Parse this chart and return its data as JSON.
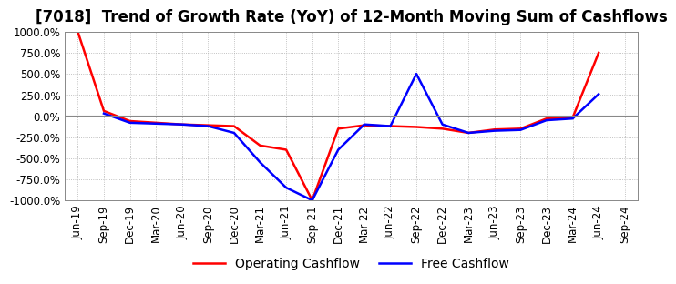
{
  "title": "[7018]  Trend of Growth Rate (YoY) of 12-Month Moving Sum of Cashflows",
  "title_fontsize": 12,
  "background_color": "#ffffff",
  "plot_background": "#ffffff",
  "grid_color": "#b0b0b0",
  "grid_style": "dotted",
  "ylim": [
    -1000,
    1000
  ],
  "yticks": [
    1000,
    750,
    500,
    250,
    0,
    -250,
    -500,
    -750,
    -1000
  ],
  "ytick_labels": [
    "1000.0%",
    "750.0%",
    "500.0%",
    "250.0%",
    "0.0%",
    "-250.0%",
    "-500.0%",
    "-750.0%",
    "-1000.0%"
  ],
  "x_labels": [
    "Jun-19",
    "Sep-19",
    "Dec-19",
    "Mar-20",
    "Jun-20",
    "Sep-20",
    "Dec-20",
    "Mar-21",
    "Jun-21",
    "Sep-21",
    "Dec-21",
    "Mar-22",
    "Jun-22",
    "Sep-22",
    "Dec-22",
    "Mar-23",
    "Jun-23",
    "Sep-23",
    "Dec-23",
    "Mar-24",
    "Jun-24",
    "Sep-24"
  ],
  "operating_cashflow": [
    1000,
    60,
    -60,
    -80,
    -100,
    -110,
    -120,
    -350,
    -400,
    -1000,
    -150,
    -110,
    -120,
    -130,
    -150,
    -200,
    -160,
    -150,
    -30,
    -20,
    750,
    null
  ],
  "free_cashflow": [
    null,
    30,
    -80,
    -90,
    -100,
    -120,
    -200,
    -550,
    -850,
    -1000,
    -400,
    -100,
    -120,
    500,
    -100,
    -200,
    -175,
    -165,
    -50,
    -30,
    260,
    null
  ],
  "op_color": "#ff0000",
  "fc_color": "#0000ff",
  "legend_fontsize": 10,
  "tick_fontsize": 8.5
}
